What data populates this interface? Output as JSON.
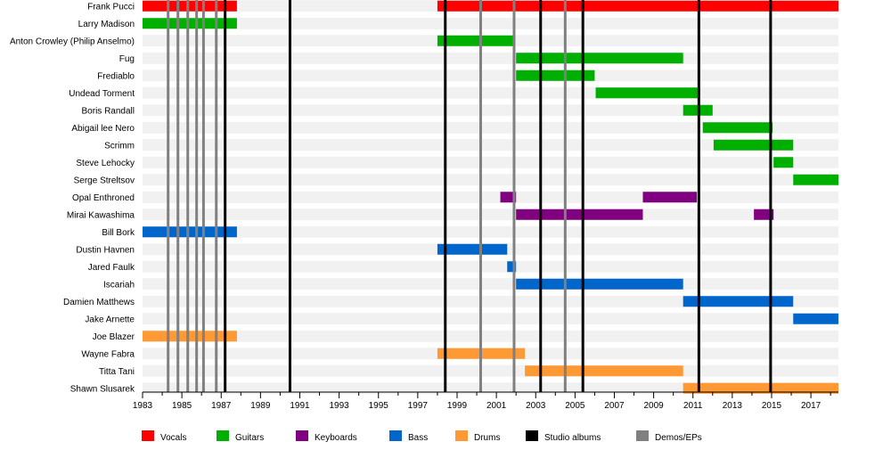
{
  "chart_data": {
    "type": "timeline",
    "title": "",
    "x_axis": {
      "min": 1983,
      "max": 2018.4,
      "unit": "year"
    },
    "ticks": [
      "1983",
      "1985",
      "1987",
      "1989",
      "1991",
      "1993",
      "1995",
      "1997",
      "1999",
      "2001",
      "2003",
      "2005",
      "2007",
      "2009",
      "2011",
      "2013",
      "2015",
      "2017"
    ],
    "colors": {
      "Vocals": "#ff0000",
      "Guitars": "#00b000",
      "Keyboards": "#800080",
      "Bass": "#0066cc",
      "Drums": "#ff9933",
      "Studio albums": "#000000",
      "Demos/EPs": "#808080"
    },
    "legend": [
      "Vocals",
      "Guitars",
      "Keyboards",
      "Bass",
      "Drums",
      "Studio albums",
      "Demos/EPs"
    ],
    "legend_position": "bottom",
    "row_stripes": true,
    "members": [
      {
        "name": "Frank Pucci",
        "periods": [
          {
            "role": "Vocals",
            "start": 1983,
            "end": 1987.8
          },
          {
            "role": "Vocals",
            "start": 1998,
            "end": 2018.4
          }
        ]
      },
      {
        "name": "Larry Madison",
        "periods": [
          {
            "role": "Guitars",
            "start": 1983,
            "end": 1987.8
          }
        ]
      },
      {
        "name": "Anton Crowley (Philip Anselmo)",
        "periods": [
          {
            "role": "Guitars",
            "start": 1998,
            "end": 2001.85
          }
        ]
      },
      {
        "name": "Fug",
        "periods": [
          {
            "role": "Guitars",
            "start": 2002,
            "end": 2010.5
          }
        ]
      },
      {
        "name": "Frediablo",
        "periods": [
          {
            "role": "Guitars",
            "start": 2002,
            "end": 2006
          }
        ]
      },
      {
        "name": "Undead Torment",
        "periods": [
          {
            "role": "Guitars",
            "start": 2006.05,
            "end": 2011.25
          }
        ]
      },
      {
        "name": "Boris Randall",
        "periods": [
          {
            "role": "Guitars",
            "start": 2010.5,
            "end": 2012
          }
        ]
      },
      {
        "name": "Abigail lee Nero",
        "periods": [
          {
            "role": "Guitars",
            "start": 2011.5,
            "end": 2015.05
          }
        ]
      },
      {
        "name": "Scrimm",
        "periods": [
          {
            "role": "Guitars",
            "start": 2012.05,
            "end": 2016.1
          }
        ]
      },
      {
        "name": "Steve Lehocky",
        "periods": [
          {
            "role": "Guitars",
            "start": 2015.1,
            "end": 2016.1
          }
        ]
      },
      {
        "name": "Serge Streltsov",
        "periods": [
          {
            "role": "Guitars",
            "start": 2016.1,
            "end": 2018.4
          }
        ]
      },
      {
        "name": "Opal Enthroned",
        "periods": [
          {
            "role": "Keyboards",
            "start": 2001.2,
            "end": 2002
          },
          {
            "role": "Keyboards",
            "start": 2008.45,
            "end": 2011.2
          }
        ]
      },
      {
        "name": "Mirai Kawashima",
        "periods": [
          {
            "role": "Keyboards",
            "start": 2002,
            "end": 2008.45
          },
          {
            "role": "Keyboards",
            "start": 2014.1,
            "end": 2015.1
          }
        ]
      },
      {
        "name": "Bill Bork",
        "periods": [
          {
            "role": "Bass",
            "start": 1983,
            "end": 1987.8
          }
        ]
      },
      {
        "name": "Dustin Havnen",
        "periods": [
          {
            "role": "Bass",
            "start": 1998,
            "end": 2001.55
          }
        ]
      },
      {
        "name": "Jared Faulk",
        "periods": [
          {
            "role": "Bass",
            "start": 2001.55,
            "end": 2002
          }
        ]
      },
      {
        "name": "Iscariah",
        "periods": [
          {
            "role": "Bass",
            "start": 2002,
            "end": 2010.5
          }
        ]
      },
      {
        "name": "Damien Matthews",
        "periods": [
          {
            "role": "Bass",
            "start": 2010.5,
            "end": 2016.1
          }
        ]
      },
      {
        "name": "Jake Arnette",
        "periods": [
          {
            "role": "Bass",
            "start": 2016.1,
            "end": 2018.4
          }
        ]
      },
      {
        "name": "Joe Blazer",
        "periods": [
          {
            "role": "Drums",
            "start": 1983,
            "end": 1987.8
          }
        ]
      },
      {
        "name": "Wayne Fabra",
        "periods": [
          {
            "role": "Drums",
            "start": 1998,
            "end": 2002.45
          }
        ]
      },
      {
        "name": "Titta Tani",
        "periods": [
          {
            "role": "Drums",
            "start": 2002.45,
            "end": 2010.5
          }
        ]
      },
      {
        "name": "Shawn Slusarek",
        "periods": [
          {
            "role": "Drums",
            "start": 2010.5,
            "end": 2018.4
          }
        ]
      }
    ],
    "studio_albums": [
      1987.2,
      1990.5,
      1998.4,
      2003.25,
      2005.4,
      2011.3,
      2014.95
    ],
    "demos_eps": [
      1984.3,
      1984.8,
      1985.3,
      1985.75,
      1986.1,
      1986.75,
      2000.2,
      2001.9,
      2004.5
    ]
  }
}
